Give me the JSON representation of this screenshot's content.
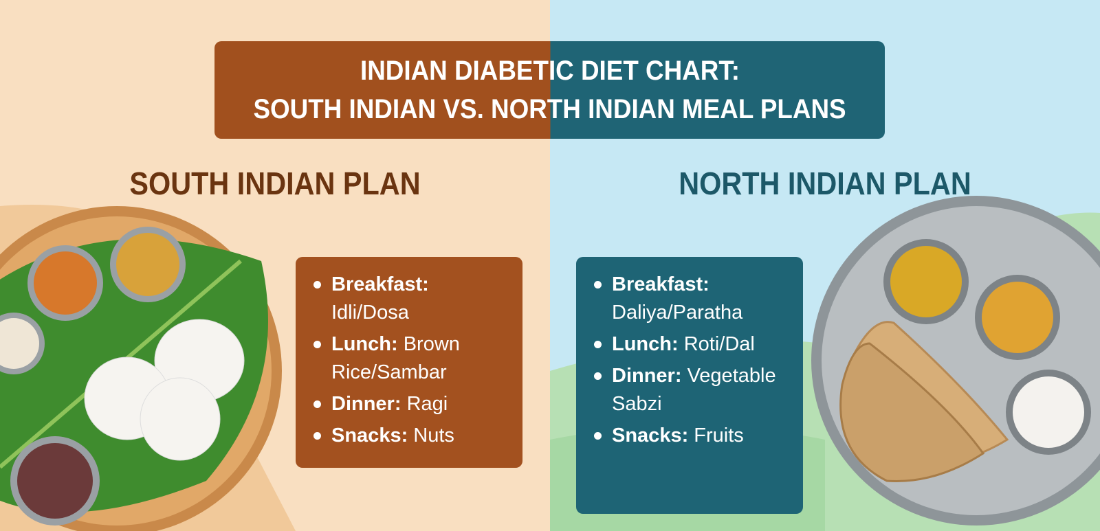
{
  "title": [
    "INDIAN DIABETIC DIET CHART:",
    "SOUTH INDIAN VS. NORTH INDIAN MEAL PLANS"
  ],
  "plans": [
    {
      "heading": "SOUTH INDIAN PLAN",
      "items": [
        {
          "meal": "Breakfast:",
          "food": "Idli/Dosa"
        },
        {
          "meal": "Lunch:",
          "food": "Brown Rice/Sambar"
        },
        {
          "meal": "Dinner:",
          "food": "Ragi"
        },
        {
          "meal": "Snacks:",
          "food": "Nuts"
        }
      ]
    },
    {
      "heading": "NORTH INDIAN PLAN",
      "items": [
        {
          "meal": "Breakfast:",
          "food": "Daliya/Paratha"
        },
        {
          "meal": "Lunch:",
          "food": "Roti/Dal"
        },
        {
          "meal": "Dinner:",
          "food": "Vegetable Sabzi"
        },
        {
          "meal": "Snacks:",
          "food": "Fruits"
        }
      ]
    }
  ]
}
